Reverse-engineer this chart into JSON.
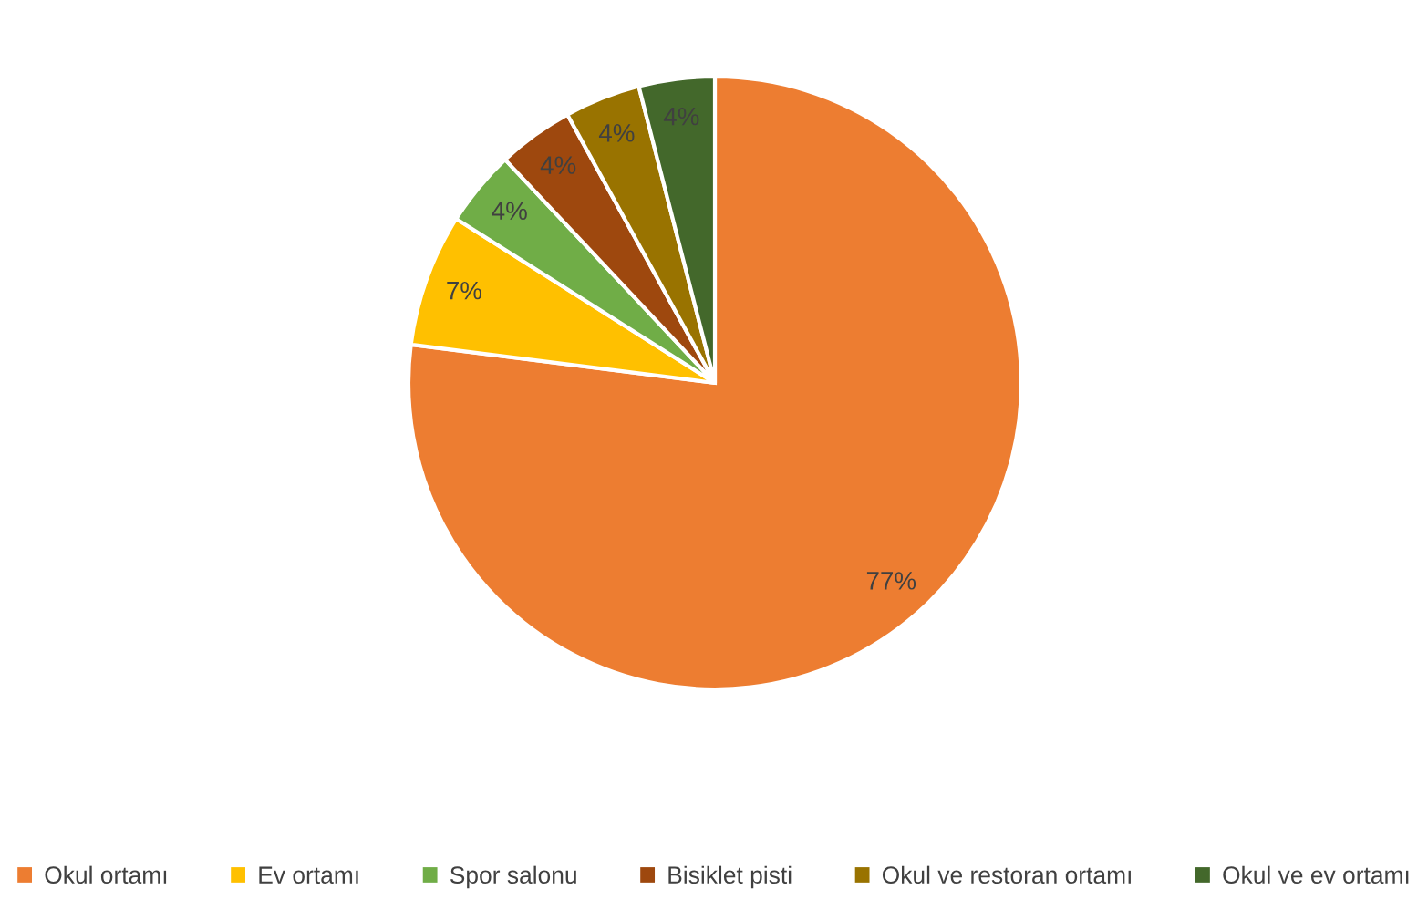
{
  "chart_data": {
    "type": "pie",
    "categories": [
      "Okul ortamı",
      "Ev ortamı",
      "Spor salonu",
      "Bisiklet pisti",
      "Okul ve restoran ortamı",
      "Okul ve ev ortamı"
    ],
    "values": [
      77,
      7,
      4,
      4,
      4,
      4
    ],
    "colors": [
      "#ed7d31",
      "#ffc000",
      "#70ad47",
      "#9e480e",
      "#997300",
      "#43682b"
    ],
    "value_labels": [
      "77%",
      "7%",
      "4%",
      "4%",
      "4%",
      "4%"
    ],
    "legend": "bottom"
  }
}
